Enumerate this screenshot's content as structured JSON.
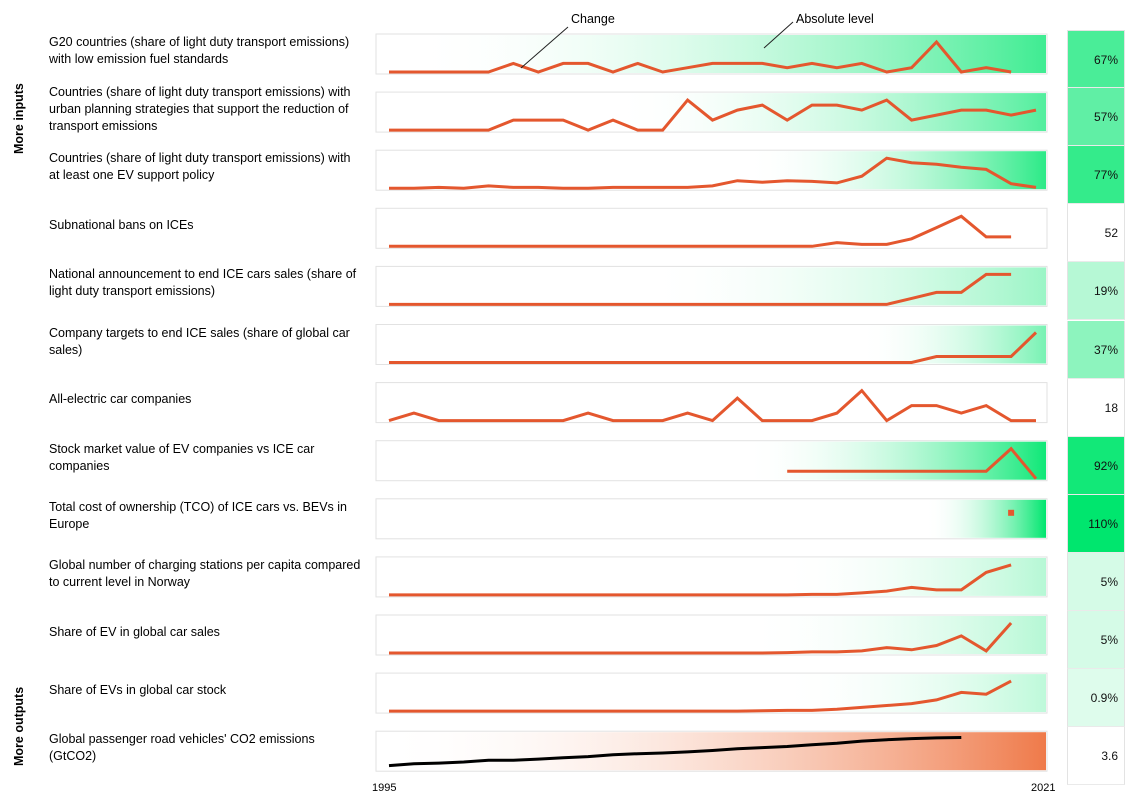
{
  "chart_data": {
    "type": "line",
    "x_start": 1995,
    "x_end": 2021,
    "x_labels": [
      "1995",
      "2021"
    ],
    "annotations": [
      "Change",
      "Absolute level"
    ],
    "side_labels": {
      "top": "More inputs",
      "bottom": "More outputs"
    },
    "colors": {
      "line": "#e4572e",
      "line_emissions": "#000000",
      "green": "#00e070",
      "orange": "#ef7a4a"
    },
    "rows": [
      {
        "label": "G20 countries (share of light duty transport emissions) with  low emission fuel standards",
        "value": "67%",
        "level": 0.67,
        "band": "green",
        "y": [
          0,
          0,
          0,
          0,
          0,
          2,
          0,
          2,
          2,
          0,
          2,
          0,
          1,
          2,
          2,
          2,
          1,
          2,
          1,
          2,
          0,
          1,
          7,
          0,
          1,
          0
        ]
      },
      {
        "label": "Countries (share of light duty transport emissions) with urban planning strategies that support the reduction of  transport emissions",
        "value": "57%",
        "level": 0.57,
        "band": "green",
        "y": [
          0,
          0,
          0,
          0,
          0,
          1,
          1,
          1,
          0,
          1,
          0,
          0,
          3,
          1,
          2,
          2.5,
          1,
          2.5,
          2.5,
          2,
          3,
          1,
          1.5,
          2,
          2,
          1.5,
          2
        ]
      },
      {
        "label": "Countries (share of light duty transport emissions) with at least one EV support policy",
        "value": "77%",
        "level": 0.77,
        "band": "green",
        "y": [
          0,
          0,
          0.1,
          0,
          0.3,
          0.1,
          0.1,
          0,
          0,
          0.1,
          0.1,
          0.1,
          0.1,
          0.3,
          1,
          0.8,
          1,
          0.9,
          0.7,
          1.6,
          4,
          3.4,
          3.2,
          2.8,
          2.5,
          0.6,
          0.1
        ]
      },
      {
        "label": "Subnational bans on ICEs",
        "value": "52",
        "level": 0,
        "band": "none",
        "y": [
          0,
          0,
          0,
          0,
          0,
          0,
          0,
          0,
          0,
          0,
          0,
          0,
          0,
          0,
          0,
          0,
          0,
          0,
          0.2,
          0.1,
          0.1,
          0.4,
          1,
          1.6,
          0.5,
          0.5
        ]
      },
      {
        "label": "National announcement to end ICE cars sales (share of light duty transport emissions)",
        "value": "19%",
        "level": 0.19,
        "band": "green",
        "y": [
          0,
          0,
          0,
          0,
          0,
          0,
          0,
          0,
          0,
          0,
          0,
          0,
          0,
          0,
          0,
          0,
          0,
          0,
          0,
          0,
          0,
          0.5,
          1,
          1,
          2.5,
          2.5
        ]
      },
      {
        "label": "Company targets to end ICE sales (share of global car sales)",
        "value": "37%",
        "level": 0.37,
        "band": "green",
        "y": [
          0,
          0,
          0,
          0,
          0,
          0,
          0,
          0,
          0,
          0,
          0,
          0,
          0,
          0,
          0,
          0,
          0,
          0,
          0,
          0,
          0,
          0,
          0.2,
          0.2,
          0.2,
          0.2,
          1
        ]
      },
      {
        "label": "All-electric car companies",
        "value": "18",
        "level": 0,
        "band": "none",
        "y": [
          0,
          1,
          0,
          0,
          0,
          0,
          0,
          0,
          1,
          0,
          0,
          0,
          1,
          0,
          3,
          0,
          0,
          0,
          1,
          4,
          0,
          2,
          2,
          1,
          2,
          0,
          0
        ]
      },
      {
        "label": "Stock market value of EV companies vs ICE car companies",
        "value": "92%",
        "level": 0.92,
        "band": "green",
        "y": [
          null,
          null,
          null,
          null,
          null,
          null,
          null,
          null,
          null,
          null,
          null,
          null,
          null,
          null,
          null,
          null,
          0,
          0,
          0,
          0,
          0,
          0,
          0,
          0,
          0,
          3,
          -1
        ]
      },
      {
        "label": "Total cost of ownership (TCO) of ICE cars vs. BEVs in Europe",
        "value": "110%",
        "level": 1.1,
        "band": "green",
        "y": [
          null,
          null,
          null,
          null,
          null,
          null,
          null,
          null,
          null,
          null,
          null,
          null,
          null,
          null,
          null,
          null,
          null,
          null,
          null,
          null,
          null,
          null,
          null,
          null,
          null,
          1
        ]
      },
      {
        "label": "Global number of charging stations per capita compared to current level in Norway",
        "value": "5%",
        "level": 0.05,
        "band": "green",
        "y": [
          0,
          0,
          0,
          0,
          0,
          0,
          0,
          0,
          0,
          0,
          0,
          0,
          0,
          0,
          0,
          0,
          0,
          0.02,
          0.02,
          0.08,
          0.15,
          0.3,
          0.2,
          0.2,
          0.9,
          1.2
        ]
      },
      {
        "label": "Share of EV in global car sales",
        "value": "5%",
        "level": 0.05,
        "band": "green",
        "y": [
          0,
          0,
          0,
          0,
          0,
          0,
          0,
          0,
          0,
          0,
          0,
          0,
          0,
          0,
          0,
          0,
          0.02,
          0.05,
          0.05,
          0.1,
          0.25,
          0.15,
          0.35,
          0.8,
          0.1,
          1.4
        ]
      },
      {
        "label": "Share of EVs in global car stock",
        "value": "0.9%",
        "level": 0.009,
        "band": "green",
        "y": [
          0,
          0,
          0,
          0,
          0,
          0,
          0,
          0,
          0,
          0,
          0,
          0,
          0,
          0,
          0,
          0.01,
          0.02,
          0.02,
          0.05,
          0.1,
          0.15,
          0.2,
          0.3,
          0.5,
          0.45,
          0.8
        ]
      },
      {
        "label": "Global passenger road vehicles' CO2 emissions (GtCO2)",
        "value": "3.6",
        "level": 0,
        "band": "orange",
        "y": [
          2.8,
          2.85,
          2.87,
          2.9,
          2.95,
          2.95,
          2.98,
          3.02,
          3.05,
          3.1,
          3.13,
          3.15,
          3.18,
          3.22,
          3.27,
          3.3,
          3.33,
          3.38,
          3.42,
          3.48,
          3.52,
          3.55,
          3.57,
          3.58
        ]
      }
    ]
  }
}
